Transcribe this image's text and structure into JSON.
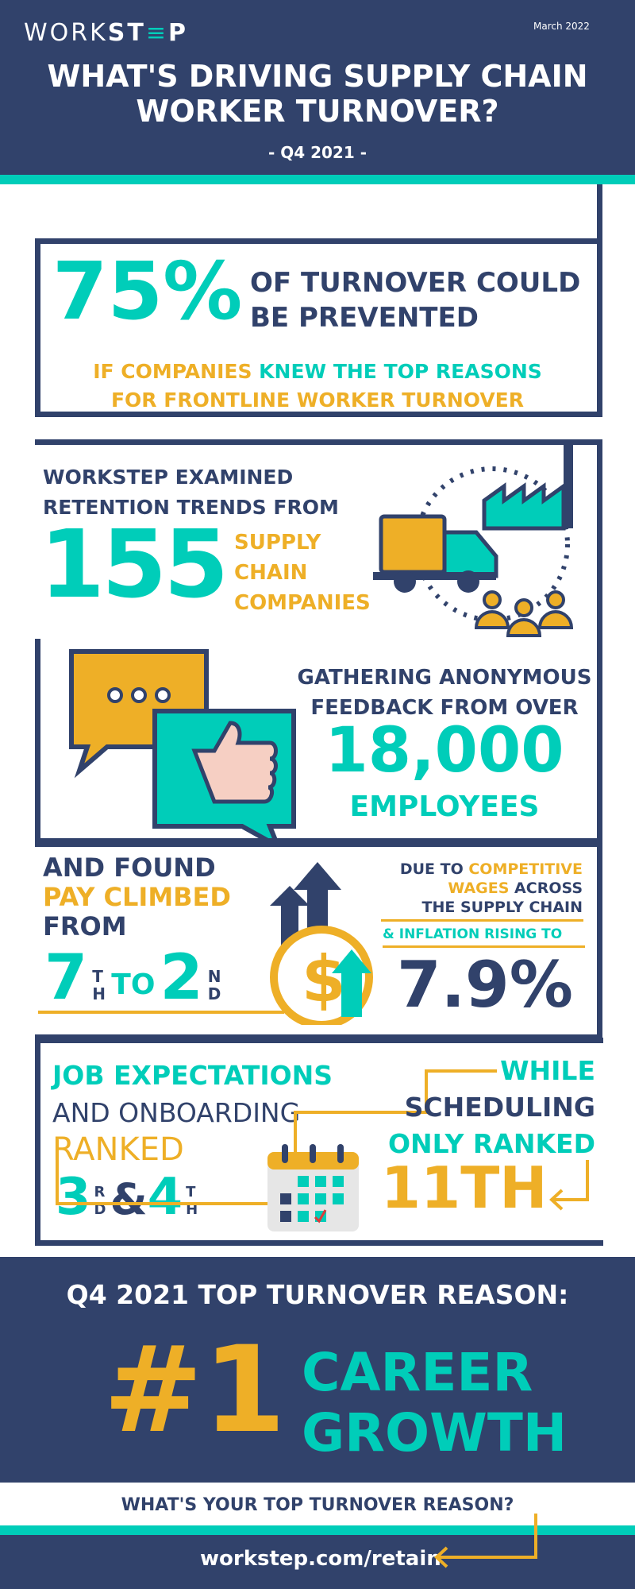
{
  "header": {
    "logo": "WORKSTEP",
    "date": "March 2022",
    "title_line1": "WHAT'S DRIVING SUPPLY CHAIN",
    "title_line2": "WORKER TURNOVER?",
    "subtitle": "- Q4 2021 -"
  },
  "stat1": {
    "value": "75%",
    "line1": "OF TURNOVER COULD",
    "line2": "BE PREVENTED",
    "sub1_a": "IF COMPANIES ",
    "sub1_b": "KNEW THE TOP REASONS",
    "sub2": "FOR FRONTLINE WORKER TURNOVER"
  },
  "stat2": {
    "line1": "WORKSTEP EXAMINED",
    "line2": "RETENTION TRENDS FROM",
    "value": "155",
    "w1": "SUPPLY",
    "w2": "CHAIN",
    "w3": "COMPANIES",
    "icons": [
      "delivery-truck-icon",
      "factory-icon",
      "workers-icon"
    ]
  },
  "stat3": {
    "line1": "GATHERING ANONYMOUS",
    "line2": "FEEDBACK FROM OVER",
    "value": "18,000",
    "label": "EMPLOYEES",
    "icons": [
      "chat-bubble-icon",
      "thumbs-up-icon"
    ]
  },
  "stat4": {
    "l1": "AND FOUND",
    "l2": "PAY CLIMBED",
    "l3": "FROM",
    "from": "7",
    "from_suf": "TH",
    "to": "TO",
    "rank": "2",
    "rank_suf": "ND",
    "r1a": "DUE TO ",
    "r1b": "COMPETITIVE",
    "r2a": "WAGES",
    "r2b": " ACROSS",
    "r3": "THE SUPPLY CHAIN",
    "r4": "& INFLATION RISING TO",
    "inflation": "7.9%"
  },
  "stat5": {
    "l1": "JOB EXPECTATIONS",
    "l2": "AND ONBOARDING",
    "l3": "RANKED",
    "n1": "3",
    "s1": "RD",
    "amp": "&",
    "n2": "4",
    "s2": "TH",
    "r1": "WHILE",
    "r2": "SCHEDULING",
    "r3": "ONLY RANKED",
    "r4": "11TH"
  },
  "banner": {
    "title": "Q4 2021 TOP TURNOVER REASON:",
    "rank": "#1",
    "reason1": "CAREER",
    "reason2": "GROWTH"
  },
  "footer": {
    "question": "WHAT'S YOUR TOP TURNOVER REASON?",
    "link": "workstep.com/retain"
  },
  "colors": {
    "navy": "#31426b",
    "teal": "#00cdb9",
    "yellow": "#eeaf27"
  }
}
